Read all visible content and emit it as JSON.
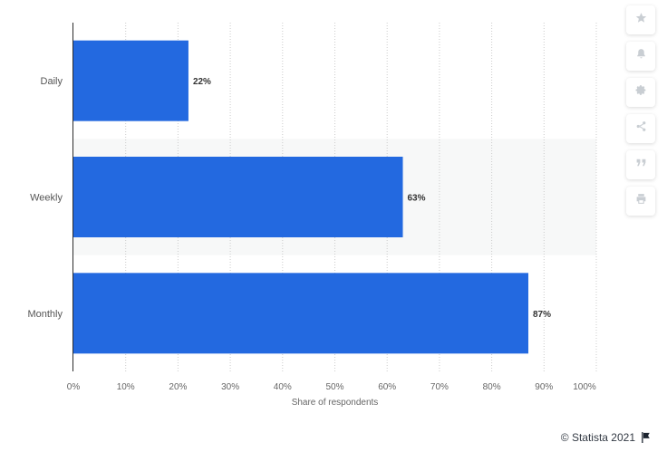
{
  "chart_data": {
    "type": "bar",
    "orientation": "horizontal",
    "categories": [
      "Daily",
      "Weekly",
      "Monthly"
    ],
    "values": [
      22,
      63,
      87
    ],
    "value_labels": [
      "22%",
      "63%",
      "87%"
    ],
    "xlabel": "Share of respondents",
    "ylabel": "",
    "xlim": [
      0,
      100
    ],
    "xticks": [
      "0%",
      "10%",
      "20%",
      "30%",
      "40%",
      "50%",
      "60%",
      "70%",
      "80%",
      "90%",
      "100%"
    ],
    "grid": "vertical dotted",
    "bar_color": "#2369e0",
    "band_color": "#f7f8f8"
  },
  "toolbar": {
    "icons": [
      "star-icon",
      "bell-icon",
      "gear-icon",
      "share-icon",
      "quote-icon",
      "print-icon"
    ]
  },
  "credit": {
    "text": "© Statista 2021",
    "icon": "flag-icon"
  }
}
